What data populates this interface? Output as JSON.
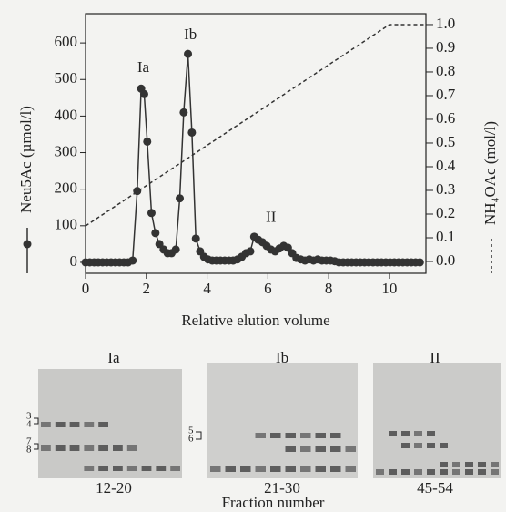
{
  "chart_data": {
    "type": "line",
    "x_label": "Relative elution volume",
    "y_label": "Neu5Ac  (µmol/l)",
    "y2_label": "NH₄OAc  (mol/l)",
    "annotations": [
      "Ia",
      "Ib",
      "II"
    ],
    "x": [
      0,
      0.14,
      0.28,
      0.42,
      0.56,
      0.7,
      0.84,
      0.98,
      1.12,
      1.26,
      1.4,
      1.55,
      1.7,
      1.83,
      1.93,
      2.03,
      2.17,
      2.3,
      2.43,
      2.57,
      2.7,
      2.83,
      2.97,
      3.1,
      3.23,
      3.37,
      3.5,
      3.63,
      3.77,
      3.9,
      4.03,
      4.17,
      4.3,
      4.44,
      4.58,
      4.72,
      4.86,
      5.0,
      5.14,
      5.28,
      5.42,
      5.55,
      5.68,
      5.82,
      5.96,
      6.1,
      6.24,
      6.38,
      6.52,
      6.66,
      6.8,
      6.94,
      7.08,
      7.22,
      7.36,
      7.5,
      7.64,
      7.78,
      7.92,
      8.06,
      8.2,
      8.34,
      8.48,
      8.62,
      8.76,
      8.9,
      9.04,
      9.18,
      9.32,
      9.46,
      9.6,
      9.74,
      9.88,
      10.02,
      10.16,
      10.3,
      10.44,
      10.58,
      10.72,
      10.86,
      11.0
    ],
    "series": [
      {
        "color": "#333333",
        "marker": "circle",
        "values": [
          0,
          0,
          0,
          0,
          0,
          0,
          0,
          0,
          0,
          0,
          0,
          5,
          195,
          475,
          460,
          330,
          135,
          80,
          50,
          35,
          25,
          25,
          35,
          175,
          410,
          570,
          355,
          65,
          30,
          15,
          8,
          5,
          5,
          5,
          5,
          5,
          5,
          8,
          15,
          25,
          30,
          70,
          62,
          55,
          45,
          35,
          30,
          38,
          45,
          40,
          25,
          12,
          8,
          5,
          8,
          5,
          8,
          5,
          5,
          5,
          3,
          0,
          0,
          0,
          0,
          0,
          0,
          0,
          0,
          0,
          0,
          0,
          0,
          0,
          0,
          0,
          0,
          0,
          0,
          0,
          0
        ]
      },
      {
        "color": "#333333",
        "dashed": true,
        "axis": "y2",
        "x": [
          0,
          10,
          11.2
        ],
        "values": [
          0.15,
          1.0,
          1.0
        ]
      }
    ],
    "xlim": [
      0,
      11.2
    ],
    "xticks": [
      0,
      2,
      4,
      6,
      8,
      10
    ],
    "ylim": [
      -30,
      680
    ],
    "yticks": [
      0,
      100,
      200,
      300,
      400,
      500,
      600
    ],
    "y2lim": [
      -0.05,
      1.046
    ],
    "y2ticks": [
      {
        "value": 0,
        "label": "0.0"
      },
      0.1,
      0.2,
      0.3,
      0.4,
      0.5,
      0.6,
      0.7,
      0.8,
      0.9,
      {
        "value": 1,
        "label": "1.0"
      }
    ]
  },
  "gels": [
    {
      "label": "Ia",
      "fractions": "12-20"
    },
    {
      "label": "Ib",
      "fractions": "21-30"
    },
    {
      "label": "II",
      "fractions": "45-54"
    }
  ],
  "gel_axis_label": "Fraction number",
  "band_labels": [
    "3",
    "4",
    "7",
    "8",
    "5",
    "6"
  ]
}
